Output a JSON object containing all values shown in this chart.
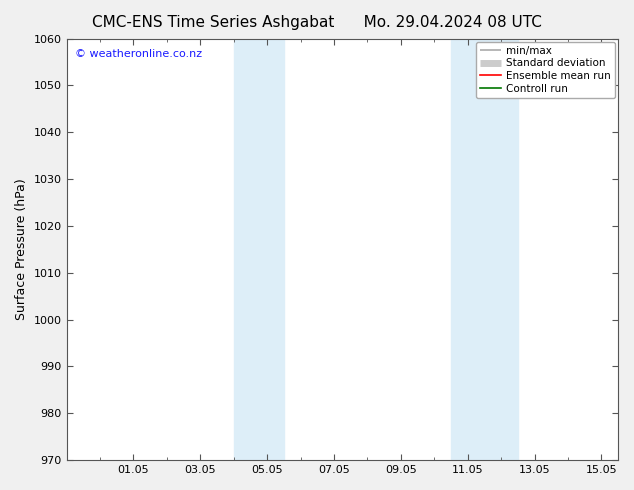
{
  "title_left": "CMC-ENS Time Series Ashgabat",
  "title_right": "Mo. 29.04.2024 08 UTC",
  "ylabel": "Surface Pressure (hPa)",
  "xlabel": "",
  "ylim": [
    970,
    1060
  ],
  "yticks": [
    970,
    980,
    990,
    1000,
    1010,
    1020,
    1030,
    1040,
    1050,
    1060
  ],
  "xmin": 29.0,
  "xmax": 45.5,
  "xtick_labels": [
    "01.05",
    "03.05",
    "05.05",
    "07.05",
    "09.05",
    "11.05",
    "13.05",
    "15.05"
  ],
  "xtick_positions": [
    31.0,
    33.0,
    35.0,
    37.0,
    39.0,
    41.0,
    43.0,
    45.0
  ],
  "shaded_bands": [
    {
      "xstart": 34.0,
      "xend": 35.5
    },
    {
      "xstart": 40.5,
      "xend": 42.5
    }
  ],
  "shaded_color": "#ddeef8",
  "watermark": "© weatheronline.co.nz",
  "watermark_color": "#1a1aff",
  "watermark_fontsize": 8,
  "background_color": "#ffffff",
  "fig_background_color": "#f0f0f0",
  "legend_items": [
    {
      "label": "min/max",
      "color": "#aaaaaa",
      "lw": 1.2
    },
    {
      "label": "Standard deviation",
      "color": "#cccccc",
      "lw": 5
    },
    {
      "label": "Ensemble mean run",
      "color": "#ff0000",
      "lw": 1.2
    },
    {
      "label": "Controll run",
      "color": "#007700",
      "lw": 1.2
    }
  ],
  "title_fontsize": 11,
  "axis_label_fontsize": 9,
  "tick_fontsize": 8,
  "legend_fontsize": 7.5,
  "font_family": "DejaVu Sans"
}
